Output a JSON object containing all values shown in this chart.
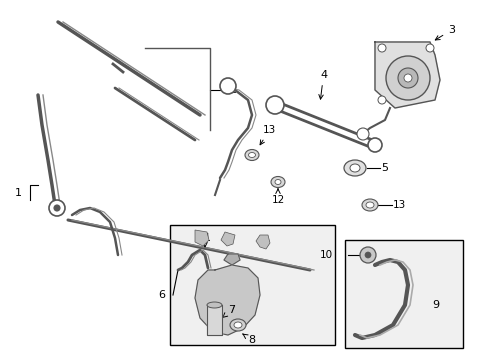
{
  "bg": "#ffffff",
  "lc": "#888888",
  "dc": "#555555",
  "figsize": [
    4.9,
    3.6
  ],
  "dpi": 100
}
